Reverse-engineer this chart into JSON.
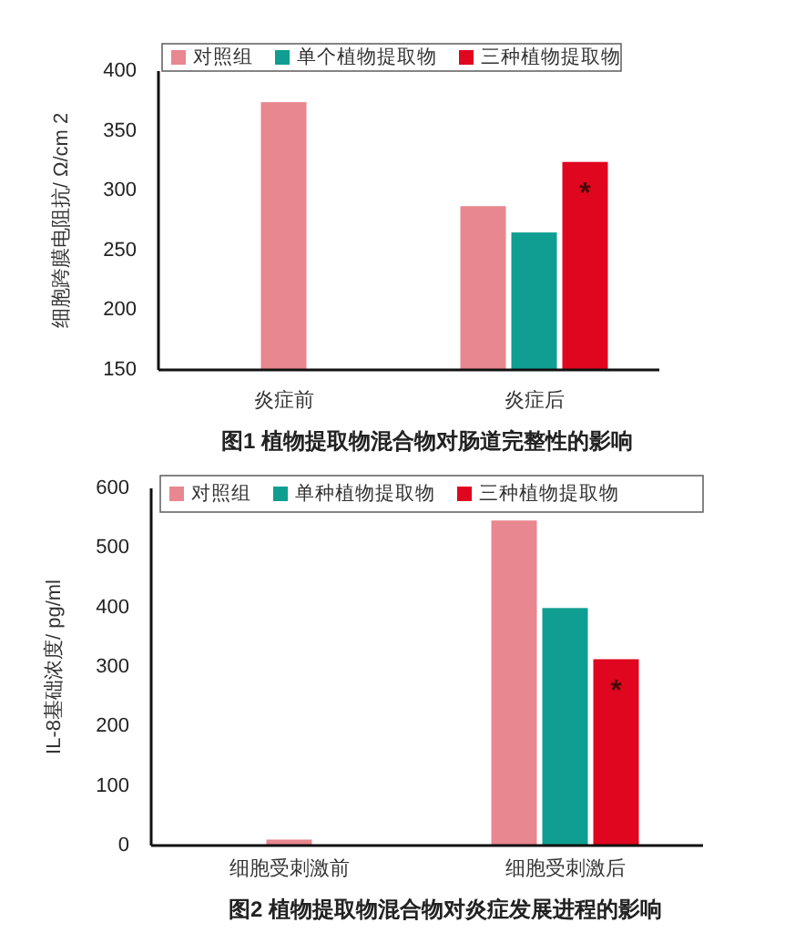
{
  "chart_data": [
    {
      "type": "bar",
      "title": "图1 植物提取物混合物对肠道完整性的影响",
      "ylabel": "细胞跨膜电阻抗/ Ω/cm 2",
      "categories": [
        "炎症前",
        "炎症后"
      ],
      "series": [
        {
          "name": "对照组",
          "color": "#e8878f",
          "values": [
            374,
            287
          ]
        },
        {
          "name": "单个植物提取物",
          "color": "#0f9e91",
          "values": [
            null,
            265
          ]
        },
        {
          "name": "三种植物提取物",
          "color": "#e0061f",
          "values": [
            null,
            324
          ]
        }
      ],
      "ylim": [
        150,
        400
      ],
      "yticks": [
        150,
        200,
        250,
        300,
        350,
        400
      ],
      "legend": "top",
      "annotations": [
        "*"
      ]
    },
    {
      "type": "bar",
      "title": "图2 植物提取物混合物对炎症发展进程的影响",
      "ylabel": "IL-8基础浓度/ pg/ml",
      "categories": [
        "细胞受刺激前",
        "细胞受刺激后"
      ],
      "series": [
        {
          "name": "对照组",
          "color": "#e8878f",
          "values": [
            10,
            546
          ]
        },
        {
          "name": "单种植物提取物",
          "color": "#0f9e91",
          "values": [
            null,
            399
          ]
        },
        {
          "name": "三种植物提取物",
          "color": "#e0061f",
          "values": [
            null,
            313
          ]
        }
      ],
      "ylim": [
        0,
        600
      ],
      "yticks": [
        0,
        100,
        200,
        300,
        400,
        500,
        600
      ],
      "legend": "top",
      "annotations": [
        "*"
      ]
    }
  ]
}
